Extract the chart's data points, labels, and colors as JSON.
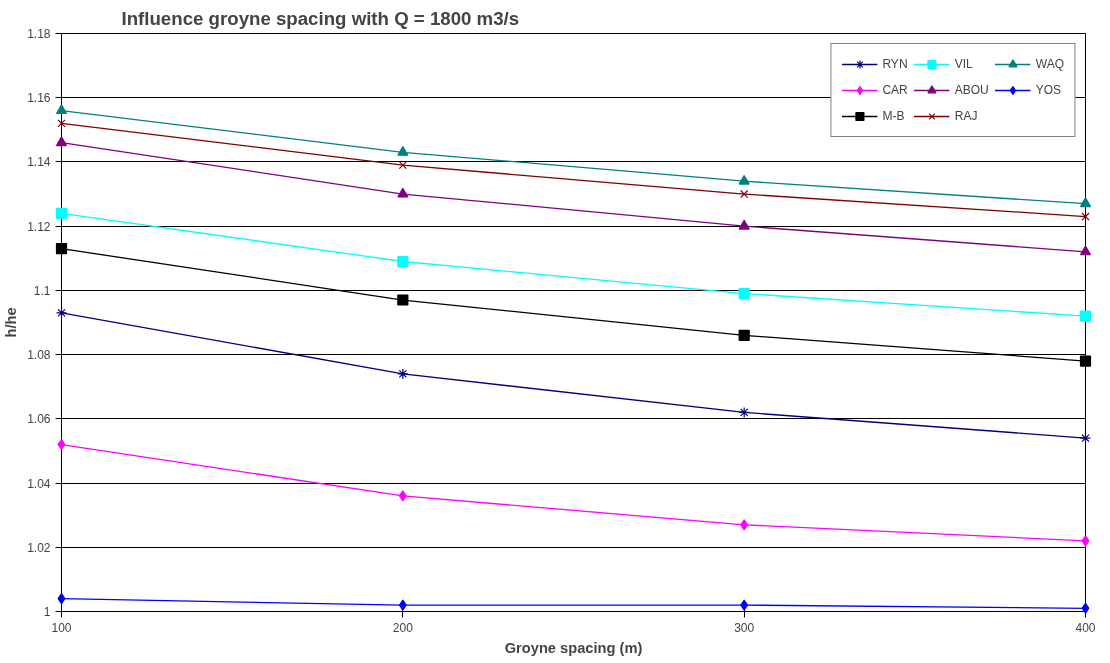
{
  "chart_data": {
    "type": "line",
    "title": "Influence groyne spacing with Q = 1800 m3/s",
    "xlabel": "Groyne spacing (m)",
    "ylabel": "h/he",
    "x": [
      100,
      200,
      300,
      400
    ],
    "series": [
      {
        "name": "RYN",
        "color": "#000080",
        "marker": "cross",
        "values": [
          1.093,
          1.074,
          1.062,
          1.054
        ]
      },
      {
        "name": "CAR",
        "color": "#ff00ff",
        "marker": "diamond",
        "values": [
          1.052,
          1.036,
          1.027,
          1.022
        ]
      },
      {
        "name": "M-B",
        "color": "#000000",
        "marker": "square",
        "values": [
          1.113,
          1.097,
          1.086,
          1.078
        ]
      },
      {
        "name": "VIL",
        "color": "#00ffff",
        "marker": "square",
        "values": [
          1.124,
          1.109,
          1.099,
          1.092
        ]
      },
      {
        "name": "ABOU",
        "color": "#800080",
        "marker": "triangle",
        "values": [
          1.146,
          1.13,
          1.12,
          1.112
        ]
      },
      {
        "name": "RAJ",
        "color": "#800000",
        "marker": "x",
        "values": [
          1.152,
          1.139,
          1.13,
          1.123
        ]
      },
      {
        "name": "WAQ",
        "color": "#008080",
        "marker": "triangle",
        "values": [
          1.156,
          1.143,
          1.134,
          1.127
        ]
      },
      {
        "name": "YOS",
        "color": "#0000ff",
        "marker": "diamond",
        "values": [
          1.004,
          1.002,
          1.002,
          1.001
        ]
      }
    ],
    "xlim": [
      100,
      400
    ],
    "xticks": [
      100,
      200,
      300,
      400
    ],
    "ylim": [
      1,
      1.18
    ],
    "yticks": [
      1,
      1.02,
      1.04,
      1.06,
      1.08,
      1.1,
      1.12,
      1.14,
      1.16,
      1.18
    ],
    "grid": "y",
    "legend": "top right",
    "line_style": "solid"
  }
}
